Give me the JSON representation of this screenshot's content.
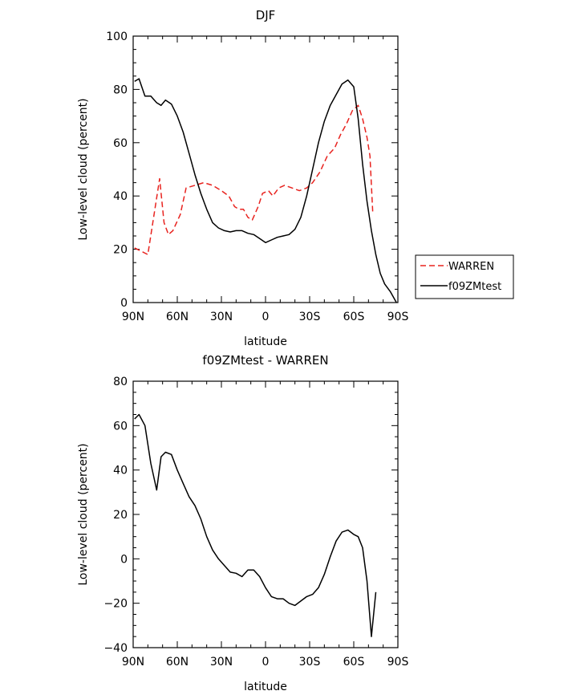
{
  "chart_data": [
    {
      "type": "line",
      "title": "DJF",
      "xlabel": "latitude",
      "ylabel": "Low-level cloud (percent)",
      "x_is_latitude_north_positive": true,
      "xlim": [
        90,
        -90
      ],
      "ylim": [
        0,
        100
      ],
      "xticks": [
        90,
        60,
        30,
        0,
        -30,
        -60,
        -90
      ],
      "xtick_labels": [
        "90N",
        "60N",
        "30N",
        "0",
        "30S",
        "60S",
        "90S"
      ],
      "yticks": [
        0,
        20,
        40,
        60,
        80,
        100
      ],
      "ytick_labels": [
        "0",
        "20",
        "40",
        "60",
        "80",
        "100"
      ],
      "legend": {
        "placement": "right-outside"
      },
      "series": [
        {
          "name": "WARREN",
          "color": "#e8231f",
          "dash": true,
          "x": [
            89,
            80,
            72,
            69,
            66,
            63,
            58,
            54,
            48,
            42,
            36,
            30,
            25,
            21,
            18,
            15,
            12,
            9,
            5,
            2,
            -2,
            -5,
            -9,
            -13,
            -18,
            -23,
            -28,
            -32,
            -37,
            -42,
            -47,
            -51,
            -55,
            -59,
            -63,
            -66,
            -69,
            -71,
            -73
          ],
          "y": [
            20.5,
            18,
            46.5,
            30,
            25.5,
            27,
            33,
            43,
            44,
            45,
            44,
            42,
            40,
            36,
            35,
            35,
            32,
            31,
            36,
            41,
            42,
            40,
            43,
            44,
            43,
            42,
            43,
            45,
            49,
            55,
            58,
            63,
            67,
            72,
            74,
            69,
            62,
            55,
            33
          ]
        },
        {
          "name": "f09ZMtest",
          "color": "#000000",
          "dash": false,
          "x": [
            89,
            86,
            82,
            78,
            74,
            71,
            68,
            64,
            60,
            56,
            52,
            48,
            44,
            40,
            36,
            32,
            28,
            24,
            20,
            16,
            12,
            8,
            4,
            0,
            -4,
            -8,
            -12,
            -16,
            -20,
            -24,
            -28,
            -32,
            -36,
            -40,
            -44,
            -48,
            -52,
            -56,
            -60,
            -63,
            -66,
            -69,
            -72,
            -75,
            -78,
            -81,
            -85,
            -89
          ],
          "y": [
            83,
            84,
            77.5,
            77.5,
            75,
            74,
            76,
            74.5,
            70,
            64,
            56,
            48,
            41,
            35,
            30,
            28,
            27,
            26.5,
            27,
            27,
            26,
            25.5,
            24,
            22.5,
            23.5,
            24.5,
            25,
            25.5,
            27.5,
            32,
            40,
            50,
            60,
            68,
            74,
            78,
            82,
            83.5,
            81,
            69,
            52,
            38,
            27,
            18,
            11,
            7,
            4,
            0
          ]
        }
      ]
    },
    {
      "type": "line",
      "title": "f09ZMtest - WARREN",
      "xlabel": "latitude",
      "ylabel": "Low-level cloud (percent)",
      "x_is_latitude_north_positive": true,
      "xlim": [
        90,
        -90
      ],
      "ylim": [
        -40,
        80
      ],
      "xticks": [
        90,
        60,
        30,
        0,
        -30,
        -60,
        -90
      ],
      "xtick_labels": [
        "90N",
        "60N",
        "30N",
        "0",
        "30S",
        "60S",
        "90S"
      ],
      "yticks": [
        -40,
        -20,
        0,
        20,
        40,
        60,
        80
      ],
      "ytick_labels": [
        "−40",
        "−20",
        "0",
        "20",
        "40",
        "60",
        "80"
      ],
      "series": [
        {
          "name": "",
          "color": "#000000",
          "dash": false,
          "x": [
            89,
            86,
            82,
            78,
            74,
            71,
            68,
            64,
            60,
            56,
            52,
            48,
            44,
            40,
            36,
            32,
            28,
            24,
            20,
            16,
            12,
            8,
            4,
            0,
            -4,
            -8,
            -12,
            -16,
            -20,
            -24,
            -28,
            -32,
            -36,
            -40,
            -44,
            -48,
            -52,
            -56,
            -60,
            -63,
            -66,
            -69,
            -72,
            -75
          ],
          "y": [
            63,
            65,
            60,
            43,
            31,
            46,
            48,
            47,
            40,
            34,
            28,
            24,
            18,
            10,
            4,
            0,
            -3,
            -6,
            -6.5,
            -8,
            -5,
            -5,
            -8,
            -13,
            -17,
            -18,
            -18,
            -20,
            -21,
            -19,
            -17,
            -16,
            -13,
            -7,
            1,
            8,
            12,
            13,
            11,
            10,
            5,
            -10,
            -35,
            -15
          ]
        }
      ]
    }
  ],
  "legend_labels": [
    "WARREN",
    "f09ZMtest"
  ]
}
